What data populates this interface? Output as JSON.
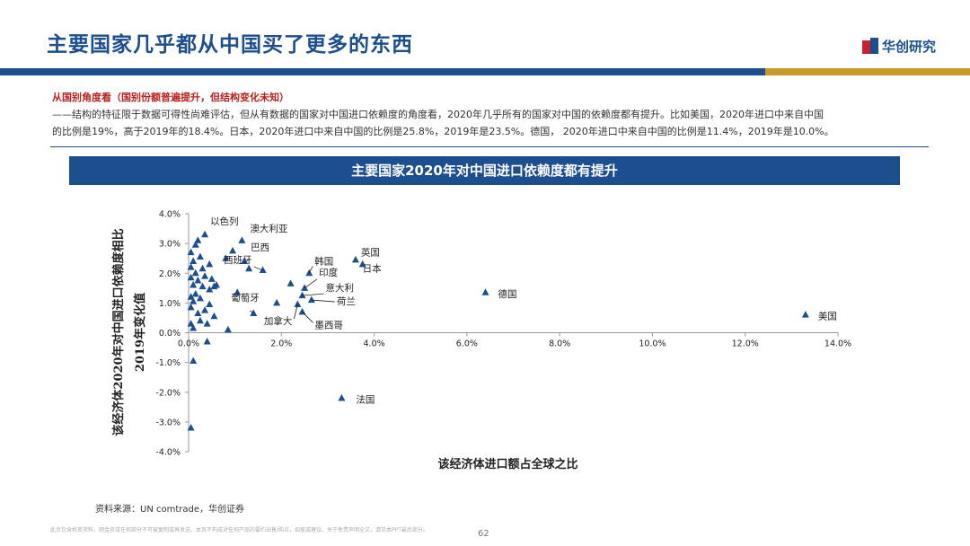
{
  "header": {
    "title": "主要国家几乎都从中国买了更多的东西",
    "brand": "华创研究"
  },
  "section": {
    "subheading": "从国别角度看（国别份额普遍提升，但结构变化未知）",
    "body_line1": "——结构的特征限于数据可得性尚难评估，但从有数据的国家对中国进口依赖度的角度看，2020年几乎所有的国家对中国的依赖度都有提升。比如美国，2020年进口中来自中国",
    "body_line2": "的比例是19%，高于2019年的18.4%。日本，2020年进口中来自中国的比例是25.8%，2019年是23.5%。德国， 2020年进口中来自中国的比例是11.4%，2019年是10.0%。"
  },
  "chart_title": "主要国家2020年对中国进口依赖度都有提升",
  "chart_data": {
    "type": "scatter",
    "xlabel": "该经济体进口额占全球之比",
    "ylabel_line1": "该经济体2020年对中国进口依赖度相比",
    "ylabel_line2": "2019年变化值",
    "xlim": [
      0,
      14
    ],
    "ylim": [
      -4,
      4
    ],
    "x_ticks": [
      "0.0%",
      "2.0%",
      "4.0%",
      "6.0%",
      "8.0%",
      "10.0%",
      "12.0%",
      "14.0%"
    ],
    "y_ticks": [
      "-4.0%",
      "-3.0%",
      "-2.0%",
      "-1.0%",
      "0.0%",
      "1.0%",
      "2.0%",
      "3.0%",
      "4.0%"
    ],
    "marker_color": "#1d4e8e",
    "points": [
      {
        "x": 0.35,
        "y": 3.3,
        "label": "以色列"
      },
      {
        "x": 1.15,
        "y": 3.1,
        "label": "澳大利亚"
      },
      {
        "x": 1.2,
        "y": 2.4,
        "label": "巴西"
      },
      {
        "x": 1.6,
        "y": 2.1,
        "label": "西班牙"
      },
      {
        "x": 2.6,
        "y": 2.0,
        "label": "韩国"
      },
      {
        "x": 3.6,
        "y": 2.45,
        "label": "英国"
      },
      {
        "x": 3.75,
        "y": 2.3,
        "label": "日本"
      },
      {
        "x": 2.5,
        "y": 1.5,
        "label": "印度"
      },
      {
        "x": 2.45,
        "y": 1.25,
        "label": "意大利"
      },
      {
        "x": 2.65,
        "y": 1.1,
        "label": "荷兰"
      },
      {
        "x": 1.4,
        "y": 0.65,
        "label": "葡萄牙"
      },
      {
        "x": 2.35,
        "y": 0.95,
        "label": "加拿大"
      },
      {
        "x": 2.45,
        "y": 0.7,
        "label": "墨西哥"
      },
      {
        "x": 6.4,
        "y": 1.35,
        "label": "德国"
      },
      {
        "x": 13.3,
        "y": 0.6,
        "label": "美国"
      },
      {
        "x": 3.3,
        "y": -2.2,
        "label": "法国"
      },
      {
        "x": 0.05,
        "y": -3.2
      },
      {
        "x": 0.1,
        "y": -0.95
      },
      {
        "x": 0.4,
        "y": -0.3
      },
      {
        "x": 0.2,
        "y": 3.1
      },
      {
        "x": 0.15,
        "y": 2.95
      },
      {
        "x": 0.05,
        "y": 2.7
      },
      {
        "x": 0.25,
        "y": 2.55
      },
      {
        "x": 0.1,
        "y": 2.4
      },
      {
        "x": 0.45,
        "y": 2.3
      },
      {
        "x": 0.05,
        "y": 2.2
      },
      {
        "x": 0.3,
        "y": 2.15
      },
      {
        "x": 0.15,
        "y": 2.0
      },
      {
        "x": 0.35,
        "y": 1.9
      },
      {
        "x": 0.05,
        "y": 1.85
      },
      {
        "x": 0.5,
        "y": 1.8
      },
      {
        "x": 0.2,
        "y": 1.75
      },
      {
        "x": 0.1,
        "y": 1.6
      },
      {
        "x": 0.3,
        "y": 1.55
      },
      {
        "x": 0.55,
        "y": 1.55
      },
      {
        "x": 0.45,
        "y": 1.45
      },
      {
        "x": 0.15,
        "y": 1.3
      },
      {
        "x": 0.05,
        "y": 1.2
      },
      {
        "x": 0.25,
        "y": 1.15
      },
      {
        "x": 0.1,
        "y": 1.05
      },
      {
        "x": 0.45,
        "y": 0.95
      },
      {
        "x": 0.05,
        "y": 0.85
      },
      {
        "x": 0.35,
        "y": 0.75
      },
      {
        "x": 0.2,
        "y": 0.65
      },
      {
        "x": 0.55,
        "y": 0.55
      },
      {
        "x": 0.25,
        "y": 0.4
      },
      {
        "x": 0.05,
        "y": 0.3
      },
      {
        "x": 0.4,
        "y": 0.3
      },
      {
        "x": 0.1,
        "y": 0.15
      },
      {
        "x": 0.85,
        "y": 0.1
      },
      {
        "x": 0.8,
        "y": 2.5
      },
      {
        "x": 0.95,
        "y": 2.75
      },
      {
        "x": 1.3,
        "y": 2.15
      },
      {
        "x": 1.05,
        "y": 1.35
      },
      {
        "x": 2.2,
        "y": 1.65
      },
      {
        "x": 1.9,
        "y": 1.0
      },
      {
        "x": 0.6,
        "y": 1.6
      }
    ]
  },
  "footer": {
    "source": "资料来源：UN comtrade，华创证券",
    "disclaimer": "此页包含机密资料，网金员或任何部分不可被复制或再发送。本页不构成对任何产品的要约出售/购买，招揽或建议。关于免责声明全文，请见本PPT最后部分。",
    "page_number": "62"
  }
}
